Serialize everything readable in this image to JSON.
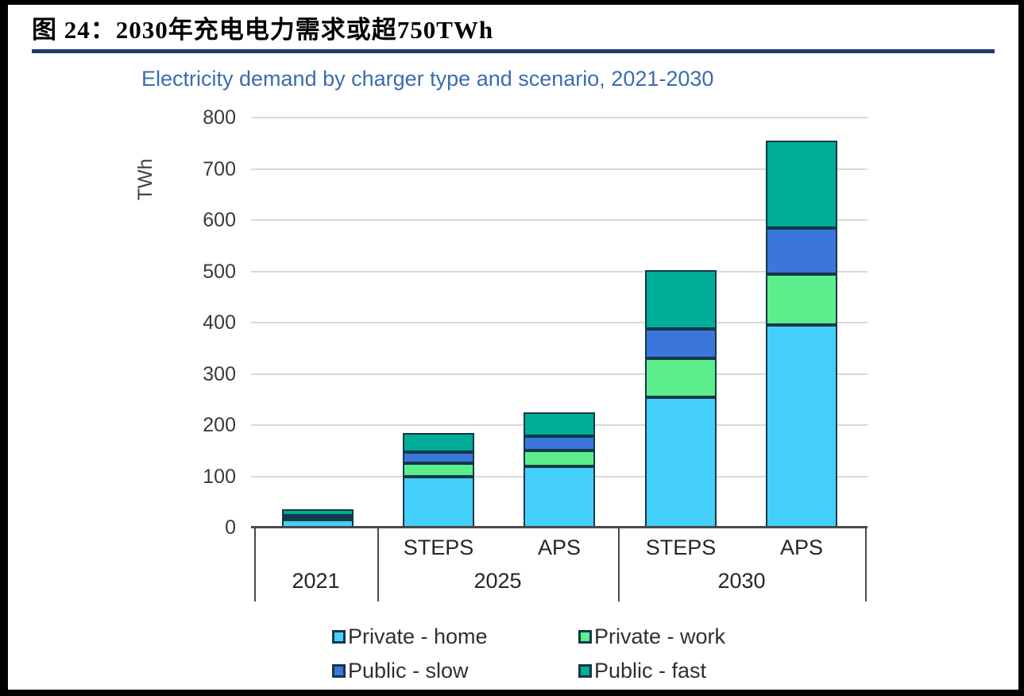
{
  "figure": {
    "caption": "图 24：2030年充电电力需求或超750TWh",
    "rule_color": "#1b3a6e"
  },
  "chart_data": {
    "type": "bar",
    "stacked": true,
    "title": "Electricity demand by charger type and scenario, 2021-2030",
    "title_color": "#3a6cb0",
    "xlabel": "",
    "ylabel": "TWh",
    "ylim": [
      0,
      800
    ],
    "yticks": [
      0,
      100,
      200,
      300,
      400,
      500,
      600,
      700,
      800
    ],
    "grid": "horizontal",
    "legend_position": "bottom",
    "groups": [
      {
        "label": "2021",
        "scenarios": [
          ""
        ]
      },
      {
        "label": "2025",
        "scenarios": [
          "STEPS",
          "APS"
        ]
      },
      {
        "label": "2030",
        "scenarios": [
          "STEPS",
          "APS"
        ]
      }
    ],
    "bar_labels": [
      "2021",
      "2025 STEPS",
      "2025 APS",
      "2030 STEPS",
      "2030 APS"
    ],
    "series": [
      {
        "name": "Private - home",
        "color": "#45cffb",
        "values": [
          15,
          100,
          120,
          255,
          395
        ]
      },
      {
        "name": "Private - work",
        "color": "#5cee8c",
        "values": [
          3,
          25,
          30,
          75,
          100
        ]
      },
      {
        "name": "Public - slow",
        "color": "#3b77da",
        "values": [
          5,
          22,
          28,
          57,
          90
        ]
      },
      {
        "name": "Public - fast",
        "color": "#00ad96",
        "values": [
          12,
          38,
          47,
          115,
          170
        ]
      }
    ],
    "totals": [
      35,
      185,
      225,
      502,
      755
    ],
    "segment_border_color": "#13384a",
    "gridline_color": "#d9d9d9",
    "axis_color": "#4a4a4a"
  }
}
